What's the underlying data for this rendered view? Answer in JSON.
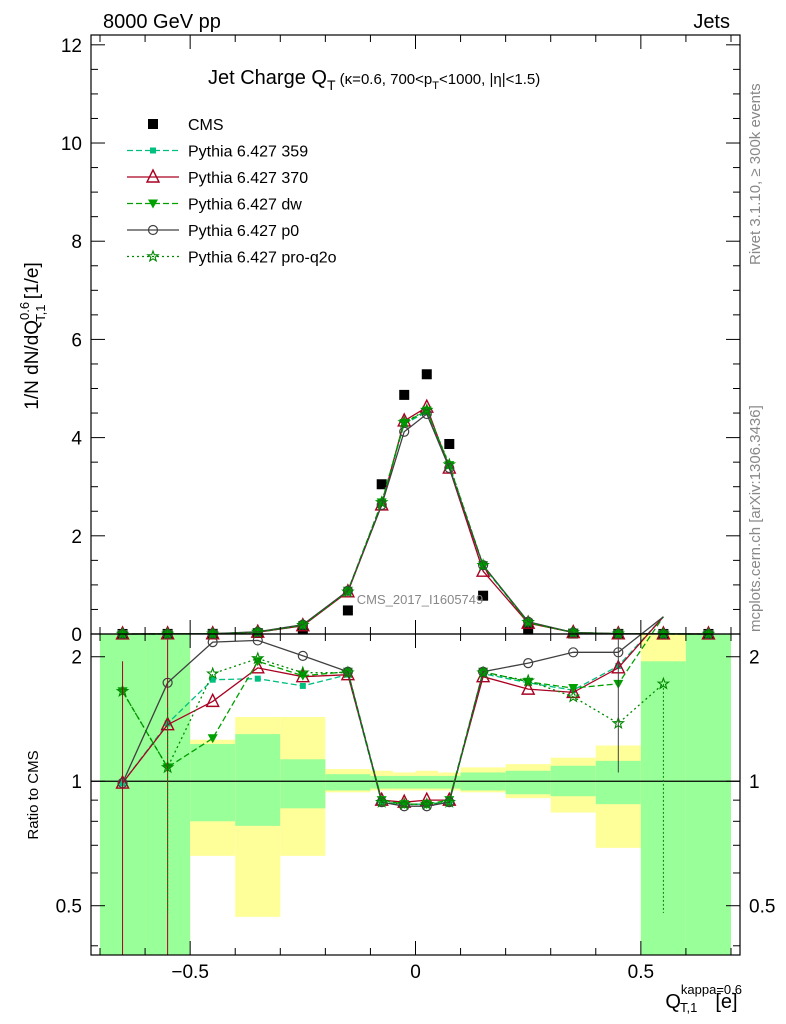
{
  "header": {
    "energy_label": "8000 GeV pp",
    "process_label": "Jets"
  },
  "side_labels": {
    "rivet": "Rivet 3.1.10, ≥ 300k events",
    "mcplots": "mcplots.cern.ch [arXiv:1306.3436]"
  },
  "watermark": "CMS_2017_I1605749",
  "chart_data": [
    {
      "type": "scatter",
      "panel": "main",
      "title": "Jet Charge Q_T (κ=0.6, 700<p_T<1000, |η|<1.5)",
      "ylabel": "1/N dN/dQ^0.6_T,1 [1/e]",
      "xlim": [
        -0.72,
        0.72
      ],
      "ylim": [
        0,
        12.2
      ],
      "yticks": [
        "0",
        "2",
        "4",
        "6",
        "8",
        "10",
        "12"
      ],
      "x": [
        -0.65,
        -0.55,
        -0.45,
        -0.35,
        -0.25,
        -0.15,
        -0.075,
        -0.025,
        0.025,
        0.075,
        0.15,
        0.25,
        0.35,
        0.45,
        0.55,
        0.65
      ],
      "series": [
        {
          "name": "CMS",
          "color": "#000000",
          "marker": "square",
          "values": [
            0.001,
            0.002,
            0.003,
            0.02,
            0.1,
            0.48,
            3.05,
            4.87,
            5.29,
            3.87,
            0.78,
            0.09,
            0.01,
            0.002,
            0.001,
            0.001
          ]
        },
        {
          "name": "Pythia 6.427 359",
          "color": "#00c080",
          "marker": "small-square",
          "dash": "6,3",
          "values": [
            0.001,
            0.003,
            0.005,
            0.035,
            0.17,
            0.87,
            2.67,
            4.28,
            4.52,
            3.42,
            1.38,
            0.23,
            0.03,
            0.005,
            0.002,
            0.001
          ]
        },
        {
          "name": "Pythia 6.427 370",
          "color": "#aa0022",
          "marker": "triangle",
          "values": [
            0.001,
            0.003,
            0.005,
            0.036,
            0.17,
            0.86,
            2.63,
            4.34,
            4.62,
            3.38,
            1.28,
            0.22,
            0.03,
            0.005,
            0.002,
            0.001
          ]
        },
        {
          "name": "Pythia 6.427 dw",
          "color": "#00a000",
          "marker": "down-triangle",
          "dash": "6,3",
          "values": [
            0.001,
            0.003,
            0.004,
            0.038,
            0.18,
            0.88,
            2.68,
            4.3,
            4.55,
            3.44,
            1.4,
            0.23,
            0.03,
            0.005,
            0.002,
            0.001
          ]
        },
        {
          "name": "Pythia 6.427 p0",
          "color": "#404040",
          "marker": "circle",
          "values": [
            0.001,
            0.004,
            0.007,
            0.044,
            0.19,
            0.88,
            2.63,
            4.12,
            4.48,
            3.38,
            1.4,
            0.25,
            0.03,
            0.006,
            0.002,
            0.001
          ]
        },
        {
          "name": "Pythia 6.427 pro-q2o",
          "color": "#008800",
          "marker": "star",
          "dash": "2,3",
          "values": [
            0.001,
            0.002,
            0.004,
            0.038,
            0.18,
            0.86,
            2.68,
            4.31,
            4.56,
            3.45,
            1.4,
            0.24,
            0.03,
            0.005,
            0.002,
            0.001
          ]
        }
      ]
    },
    {
      "type": "line",
      "panel": "ratio",
      "ylabel": "Ratio to CMS",
      "xlabel": "Q^kappa=0.6_T,1 [e]",
      "xlim": [
        -0.72,
        0.72
      ],
      "ylim": [
        0.38,
        2.27
      ],
      "yticks": [
        "0.5",
        "1",
        "2"
      ],
      "xticks": [
        "−0.5",
        "0",
        "0.5"
      ],
      "reference_line": 1,
      "bin_edges": [
        -0.7,
        -0.6,
        -0.5,
        -0.4,
        -0.3,
        -0.2,
        -0.1,
        -0.05,
        0,
        0.05,
        0.1,
        0.2,
        0.3,
        0.4,
        0.5,
        0.6,
        0.7
      ],
      "band_stat_low": [
        0.38,
        0.38,
        0.8,
        0.78,
        0.86,
        0.95,
        0.96,
        0.96,
        0.96,
        0.96,
        0.95,
        0.93,
        0.92,
        0.88,
        0.38,
        0.38
      ],
      "band_stat_high": [
        2.27,
        2.27,
        1.23,
        1.3,
        1.13,
        1.04,
        1.03,
        1.03,
        1.03,
        1.03,
        1.05,
        1.06,
        1.09,
        1.12,
        1.95,
        2.27
      ],
      "band_total_low": [
        0.38,
        0.38,
        0.66,
        0.47,
        0.66,
        0.94,
        0.95,
        0.95,
        0.95,
        0.95,
        0.94,
        0.91,
        0.84,
        0.69,
        0.38,
        0.38
      ],
      "band_total_high": [
        2.27,
        2.27,
        1.26,
        1.43,
        1.43,
        1.07,
        1.06,
        1.05,
        1.06,
        1.05,
        1.08,
        1.1,
        1.14,
        1.22,
        2.27,
        2.27
      ],
      "x": [
        -0.65,
        -0.55,
        -0.45,
        -0.35,
        -0.25,
        -0.15,
        -0.075,
        -0.025,
        0.025,
        0.075,
        0.15,
        0.25,
        0.35,
        0.45,
        0.55
      ],
      "series": [
        {
          "name": "Pythia 6.427 359",
          "values": [
            0.99,
            1.38,
            1.76,
            1.77,
            1.7,
            1.81,
            0.89,
            0.88,
            0.88,
            0.89,
            1.82,
            1.73,
            1.66,
            1.9,
            2.5
          ]
        },
        {
          "name": "Pythia 6.427 370",
          "values": [
            0.99,
            1.37,
            1.56,
            1.88,
            1.79,
            1.81,
            0.9,
            0.89,
            0.9,
            0.9,
            1.79,
            1.67,
            1.64,
            1.88,
            2.5
          ]
        },
        {
          "name": "Pythia 6.427 dw",
          "values": [
            1.65,
            1.08,
            1.27,
            1.95,
            1.8,
            1.84,
            0.9,
            0.88,
            0.88,
            0.9,
            1.84,
            1.74,
            1.68,
            1.72,
            2.5
          ]
        },
        {
          "name": "Pythia 6.427 p0",
          "values": [
            0.99,
            1.73,
            2.17,
            2.19,
            2.01,
            1.84,
            0.89,
            0.87,
            0.87,
            0.89,
            1.84,
            1.93,
            2.05,
            2.05,
            2.5
          ]
        },
        {
          "name": "Pythia 6.427 pro-q2o",
          "values": [
            1.65,
            1.08,
            1.82,
            1.98,
            1.83,
            1.83,
            0.89,
            0.88,
            0.88,
            0.89,
            1.83,
            1.75,
            1.6,
            1.38,
            1.72
          ]
        }
      ]
    }
  ]
}
